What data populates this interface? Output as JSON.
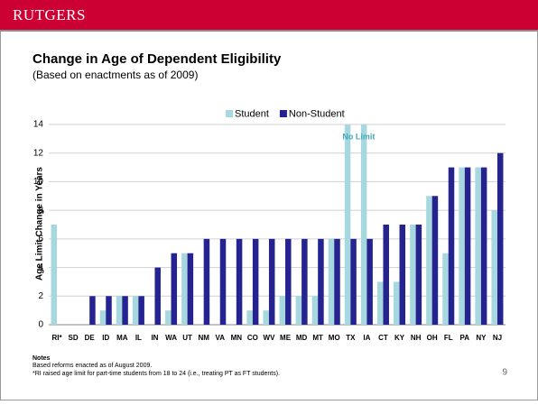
{
  "header": {
    "logo": "RUTGERS"
  },
  "chart_data": {
    "type": "bar",
    "title": "Change in Age of Dependent Eligibility",
    "subtitle": "(Based on enactments as of 2009)",
    "y_label": "Age Limit Change in Years",
    "annotation": "No Limit",
    "categories": [
      "RI*",
      "SD",
      "DE",
      "ID",
      "MA",
      "IL",
      "IN",
      "WA",
      "UT",
      "NM",
      "VA",
      "MN",
      "CO",
      "WV",
      "ME",
      "MD",
      "MT",
      "MO",
      "TX",
      "IA",
      "CT",
      "KY",
      "NH",
      "OH",
      "FL",
      "PA",
      "NY",
      "NJ"
    ],
    "series": [
      {
        "name": "Student",
        "color": "#a8d8df",
        "values": [
          7,
          0,
          0,
          1,
          2,
          2,
          0,
          1,
          5,
          0,
          0,
          0,
          1,
          1,
          2,
          2,
          2,
          6,
          14,
          14,
          3,
          3,
          7,
          9,
          5,
          11,
          11,
          8
        ]
      },
      {
        "name": "Non-Student",
        "color": "#25238f",
        "values": [
          0,
          0,
          2,
          2,
          2,
          2,
          4,
          5,
          5,
          6,
          6,
          6,
          6,
          6,
          6,
          6,
          6,
          6,
          6,
          6,
          7,
          7,
          7,
          9,
          11,
          11,
          11,
          12
        ]
      }
    ],
    "ylim": [
      0,
      14
    ],
    "yticks": [
      0,
      2,
      4,
      6,
      8,
      10,
      12,
      14
    ],
    "grid": true,
    "legend": "top"
  },
  "notes": {
    "heading": "Notes",
    "lines": [
      "Based reforms enacted as of August 2009.",
      "*RI raised age limit for part-time students from 18 to 24 (i.e., treating PT as FT students)."
    ]
  },
  "page_number": "9"
}
